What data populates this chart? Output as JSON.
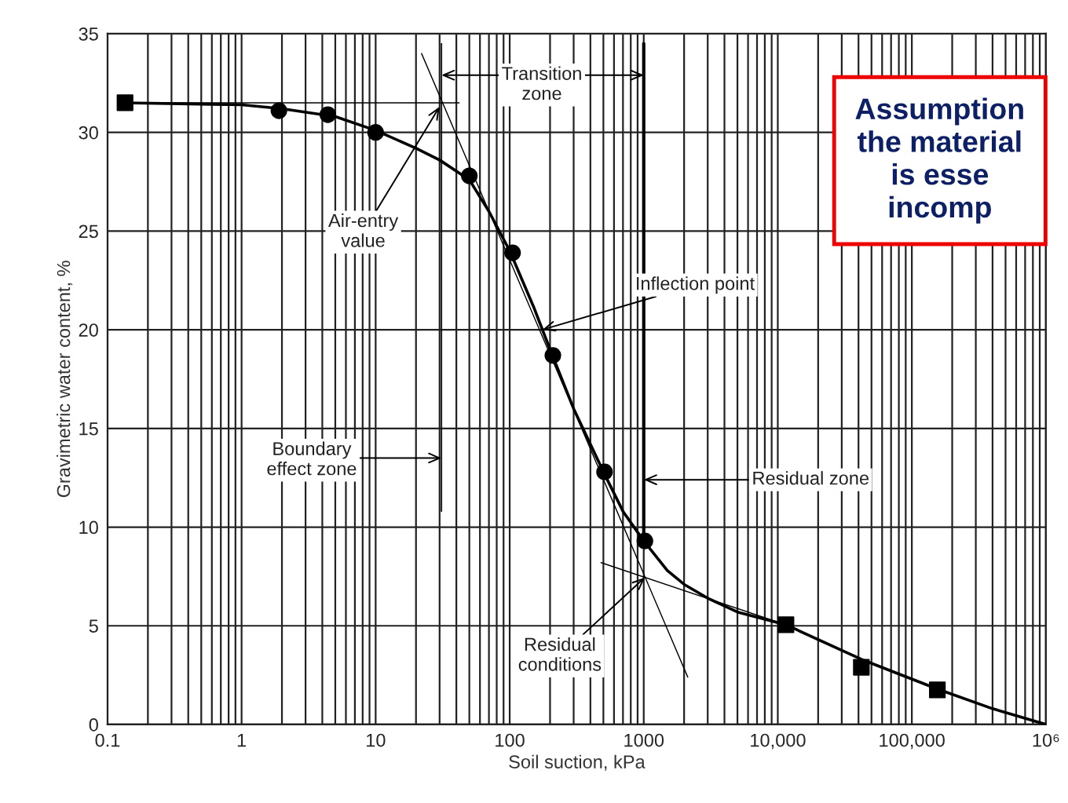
{
  "chart_data": {
    "type": "line",
    "xlabel": "Soil suction, kPa",
    "ylabel": "Gravimetric water content, %",
    "log": "x",
    "grid": true,
    "xlim": [
      0.1,
      1000000
    ],
    "ylim": [
      0,
      35
    ],
    "xticks": [
      {
        "value": 0.1,
        "label": "0.1"
      },
      {
        "value": 1,
        "label": "1"
      },
      {
        "value": 10,
        "label": "10"
      },
      {
        "value": 100,
        "label": "100"
      },
      {
        "value": 1000,
        "label": "1000"
      },
      {
        "value": 10000,
        "label": "10,000"
      },
      {
        "value": 100000,
        "label": "100,000"
      },
      {
        "value": 1000000,
        "label": "10⁶"
      }
    ],
    "yticks": [
      0,
      5,
      10,
      15,
      20,
      25,
      30,
      35
    ],
    "series": [
      {
        "color": "#000000",
        "marker": "none",
        "x": [
          0.135,
          1,
          2,
          5,
          10,
          20,
          30,
          50,
          70,
          100,
          150,
          200,
          300,
          500,
          700,
          1000,
          1500,
          2000,
          3000,
          5000,
          11500,
          42000,
          155000,
          400000,
          1000000
        ],
        "values": [
          31.5,
          31.4,
          31.2,
          30.8,
          30.1,
          29.2,
          28.6,
          27.6,
          26.0,
          24.0,
          21.2,
          19.0,
          16.0,
          12.8,
          10.8,
          9.3,
          7.8,
          7.1,
          6.4,
          5.7,
          5.05,
          3.3,
          1.8,
          0.8,
          0
        ]
      },
      {
        "color": "#000000",
        "marker": "none",
        "x": [
          22,
          2130
        ],
        "values": [
          34.0,
          2.4
        ]
      },
      {
        "color": "#000000",
        "marker": "none",
        "x": [
          0.135,
          42
        ],
        "values": [
          31.5,
          31.5
        ]
      },
      {
        "color": "#000000",
        "marker": "none",
        "x": [
          480,
          11500
        ],
        "values": [
          8.2,
          5.05
        ]
      },
      {
        "color": "#000000",
        "marker": "none",
        "x": [
          31,
          31
        ],
        "values": [
          34.5,
          10.8
        ]
      },
      {
        "color": "#000000",
        "marker": "none",
        "x": [
          1000,
          1000
        ],
        "values": [
          34.5,
          9.3
        ]
      },
      {
        "type": "scatter",
        "color": "#000000",
        "marker": "square",
        "x": [
          0.135
        ],
        "values": [
          31.5
        ]
      },
      {
        "type": "scatter",
        "color": "#000000",
        "marker": "circle",
        "x": [
          1.9,
          4.4,
          10,
          50,
          105,
          210,
          510,
          1020
        ],
        "values": [
          31.1,
          30.9,
          30.0,
          27.8,
          23.9,
          18.7,
          12.8,
          9.3
        ]
      },
      {
        "type": "scatter",
        "color": "#000000",
        "marker": "square",
        "x": [
          11500,
          42000,
          155000
        ],
        "values": [
          5.05,
          2.9,
          1.75
        ]
      }
    ],
    "annotations": [
      {
        "text": "Transition\nzone",
        "x": 31,
        "y": 32.9
      },
      {
        "text": "Air-entry\nvalue",
        "x": 30,
        "y": 31.3
      },
      {
        "text": "Boundary\neffect zone",
        "x": 31,
        "y": 13.5
      },
      {
        "text": "Inflection point",
        "x": 175,
        "y": 20.0
      },
      {
        "text": "Residual zone",
        "x": 1000,
        "y": 12.4
      },
      {
        "text": "Residual\nconditions",
        "x": 1020,
        "y": 7.45
      },
      "Assumption\nthe material\nis esse\nincomp"
    ]
  }
}
